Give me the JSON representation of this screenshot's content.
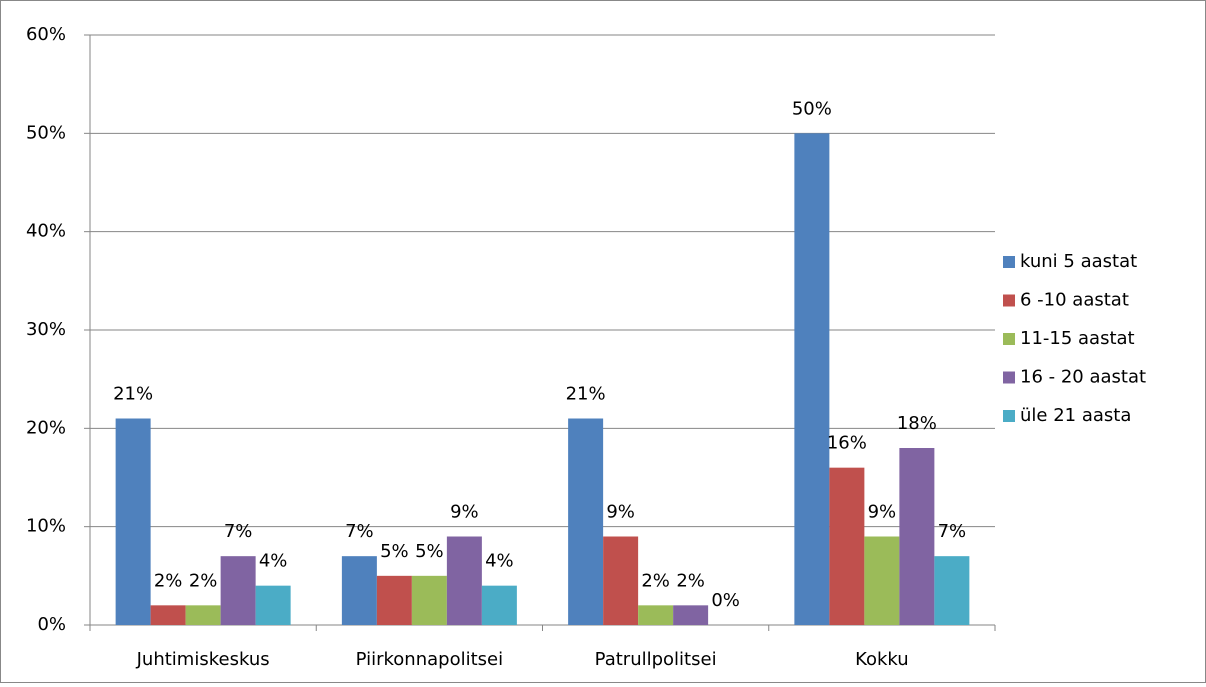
{
  "chart_data": {
    "type": "bar",
    "categories": [
      "Juhtimiskeskus",
      "Piirkonnapolitsei",
      "Patrullpolitsei",
      "Kokku"
    ],
    "series": [
      {
        "name": "kuni 5 aastat",
        "color": "#4f81bd",
        "values": [
          21,
          7,
          21,
          50
        ],
        "value_labels": [
          "21%",
          "7%",
          "21%",
          "50%"
        ]
      },
      {
        "name": "6 -10 aastat",
        "color": "#c0504d",
        "values": [
          2,
          5,
          9,
          16
        ],
        "value_labels": [
          "2%",
          "5%",
          "9%",
          "16%"
        ]
      },
      {
        "name": "11-15 aastat",
        "color": "#9bbb59",
        "values": [
          2,
          5,
          2,
          9
        ],
        "value_labels": [
          "2%",
          "5%",
          "2%",
          "9%"
        ]
      },
      {
        "name": "16 - 20 aastat",
        "color": "#8064a2",
        "values": [
          7,
          9,
          2,
          18
        ],
        "value_labels": [
          "7%",
          "9%",
          "2%",
          "18%"
        ]
      },
      {
        "name": "üle 21 aasta",
        "color": "#4bacc6",
        "values": [
          4,
          4,
          0,
          7
        ],
        "value_labels": [
          "4%",
          "4%",
          "0%",
          "7%"
        ]
      }
    ],
    "ylim": [
      0,
      60
    ],
    "yticks": [
      {
        "value": 0,
        "label": "0%"
      },
      {
        "value": 10,
        "label": "10%"
      },
      {
        "value": 20,
        "label": "20%"
      },
      {
        "value": 30,
        "label": "30%"
      },
      {
        "value": 40,
        "label": "40%"
      },
      {
        "value": 50,
        "label": "50%"
      },
      {
        "value": 60,
        "label": "60%"
      }
    ],
    "grid": true,
    "legend": "right"
  }
}
